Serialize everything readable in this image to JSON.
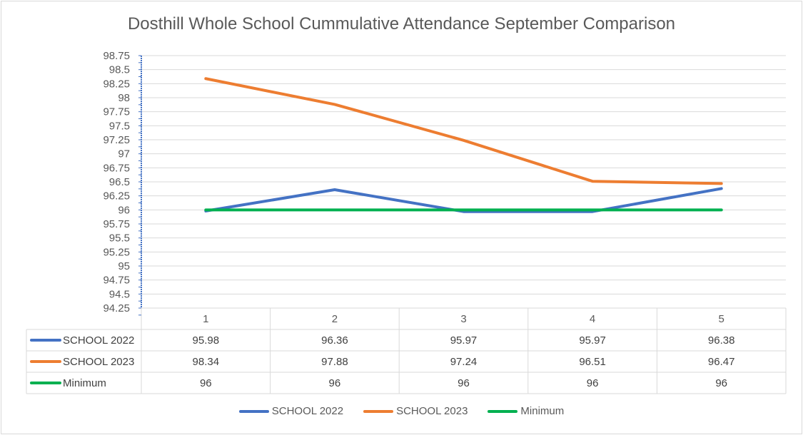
{
  "chart_data": {
    "type": "line",
    "title": "Dosthill Whole School Cummulative Attendance September Comparison",
    "categories": [
      "1",
      "2",
      "3",
      "4",
      "5"
    ],
    "ylim": [
      94.25,
      98.75
    ],
    "ytick_step": 0.25,
    "ytick_labels": [
      "98.75",
      "98.5",
      "98.25",
      "98",
      "97.75",
      "97.5",
      "97.25",
      "97",
      "96.75",
      "96.5",
      "96.25",
      "96",
      "95.75",
      "95.5",
      "95.25",
      "95",
      "94.75",
      "94.5",
      "94.25"
    ],
    "grid": true,
    "legend_position": "bottom",
    "data_table": true,
    "series": [
      {
        "name": "SCHOOL 2022",
        "color": "#4472c4",
        "values": [
          95.98,
          96.36,
          95.97,
          95.97,
          96.38
        ],
        "labels": [
          "95.98",
          "96.36",
          "95.97",
          "95.97",
          "96.38"
        ]
      },
      {
        "name": "SCHOOL 2023",
        "color": "#ed7d31",
        "values": [
          98.34,
          97.88,
          97.24,
          96.51,
          96.47
        ],
        "labels": [
          "98.34",
          "97.88",
          "97.24",
          "96.51",
          "96.47"
        ]
      },
      {
        "name": "Minimum",
        "color": "#00b050",
        "values": [
          96,
          96,
          96,
          96,
          96
        ],
        "labels": [
          "96",
          "96",
          "96",
          "96",
          "96"
        ]
      }
    ]
  }
}
